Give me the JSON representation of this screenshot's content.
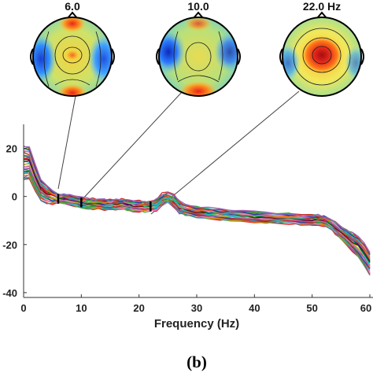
{
  "chart_data": {
    "type": "line",
    "xlabel": "Frequency (Hz)",
    "ylabel": "",
    "xlim": [
      0,
      60
    ],
    "ylim": [
      -42,
      30
    ],
    "xticks": [
      "0",
      "10",
      "20",
      "30",
      "40",
      "50",
      "60"
    ],
    "yticks": [
      "20",
      "0",
      "-20",
      "-40"
    ],
    "grid": false,
    "panel_label": "(b)",
    "mean_spectrum": {
      "x": [
        0,
        1,
        2,
        3,
        4,
        5,
        6,
        7,
        8,
        9,
        10,
        11,
        12,
        13,
        14,
        15,
        16,
        17,
        18,
        19,
        20,
        21,
        22,
        23,
        24,
        25,
        26,
        27,
        28,
        30,
        32,
        34,
        36,
        38,
        40,
        42,
        44,
        46,
        48,
        50,
        51,
        52,
        53,
        54,
        55,
        56,
        57,
        58,
        59,
        60
      ],
      "y": [
        14,
        14,
        8,
        3,
        1,
        0,
        -1,
        -1,
        -1.5,
        -2,
        -2.5,
        -3,
        -3,
        -3,
        -3.5,
        -3.5,
        -3.2,
        -3.2,
        -3.6,
        -4,
        -4,
        -4.3,
        -4.2,
        -3.8,
        -1.8,
        -1,
        -2.2,
        -4.8,
        -5.6,
        -6.4,
        -7,
        -7.5,
        -8,
        -8.3,
        -8.6,
        -8.8,
        -9,
        -9.2,
        -9.5,
        -9.8,
        -9.8,
        -10,
        -11,
        -13,
        -15,
        -17,
        -19,
        -21,
        -24,
        -28
      ]
    },
    "n_channel_traces": 32,
    "markers": [
      {
        "freq": 6,
        "label": "6.0"
      },
      {
        "freq": 10,
        "label": "10.0"
      },
      {
        "freq": 22,
        "label": "22.0 Hz"
      }
    ]
  },
  "colors": {
    "axis": "#333333",
    "connector": "#444444",
    "marker": "#000000",
    "traces": [
      "#e41a1c",
      "#377eb8",
      "#4daf4a",
      "#984ea3",
      "#ff7f00",
      "#a65628",
      "#f781bf",
      "#17becf",
      "#1f3f9f",
      "#2ca02c",
      "#d62728",
      "#9467bd",
      "#8c564b",
      "#e377c2",
      "#7f7f7f",
      "#bcbd22",
      "#00ced1",
      "#8b0000",
      "#006400",
      "#4b0082"
    ]
  },
  "topomaps": [
    {
      "label": "6.0",
      "colormap": "jet"
    },
    {
      "label": "10.0",
      "colormap": "jet"
    },
    {
      "label": "22.0 Hz",
      "colormap": "jet"
    }
  ]
}
